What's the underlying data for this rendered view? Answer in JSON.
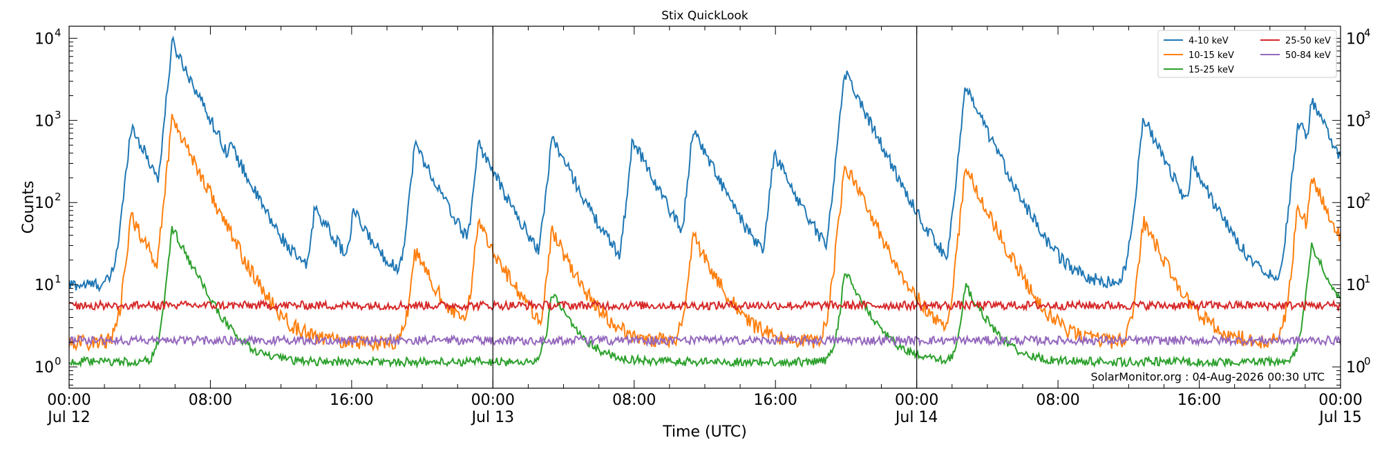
{
  "chart_data": {
    "type": "line",
    "title": "Stix QuickLook",
    "xlabel": "Time (UTC)",
    "ylabel": "Counts",
    "y_scale": "log",
    "ylim": [
      0.55,
      14000
    ],
    "xlim": [
      "2026-07-12 00:00",
      "2026-07-15 00:00"
    ],
    "grid": false,
    "legend_placement": "top-right",
    "x_ticks": [
      {
        "value": "2026-07-12 00:00",
        "label": "00:00",
        "sublabel": "Jul 12"
      },
      {
        "value": "2026-07-12 08:00",
        "label": "08:00",
        "sublabel": ""
      },
      {
        "value": "2026-07-12 16:00",
        "label": "16:00",
        "sublabel": ""
      },
      {
        "value": "2026-07-13 00:00",
        "label": "00:00",
        "sublabel": "Jul 13"
      },
      {
        "value": "2026-07-13 08:00",
        "label": "08:00",
        "sublabel": ""
      },
      {
        "value": "2026-07-13 16:00",
        "label": "16:00",
        "sublabel": ""
      },
      {
        "value": "2026-07-14 00:00",
        "label": "00:00",
        "sublabel": "Jul 14"
      },
      {
        "value": "2026-07-14 08:00",
        "label": "08:00",
        "sublabel": ""
      },
      {
        "value": "2026-07-14 16:00",
        "label": "16:00",
        "sublabel": ""
      },
      {
        "value": "2026-07-15 00:00",
        "label": "00:00",
        "sublabel": "Jul 15"
      }
    ],
    "y_ticks": [
      1,
      10,
      100,
      1000,
      10000
    ],
    "day_dividers": [
      "2026-07-13 00:00",
      "2026-07-14 00:00"
    ],
    "annotation": "SolarMonitor.org : 04-Aug-2026 00:30 UTC",
    "series": [
      {
        "name": "4-10 keV",
        "color": "#1f77b4",
        "baseline": 10,
        "peaks": [
          {
            "time": "2026-07-12 03:30",
            "peak": 880
          },
          {
            "time": "2026-07-12 05:50",
            "peak": 9000
          },
          {
            "time": "2026-07-12 09:05",
            "peak": 540
          },
          {
            "time": "2026-07-12 13:55",
            "peak": 90
          },
          {
            "time": "2026-07-12 16:05",
            "peak": 80
          },
          {
            "time": "2026-07-12 19:35",
            "peak": 530
          },
          {
            "time": "2026-07-12 23:10",
            "peak": 540
          },
          {
            "time": "2026-07-13 03:20",
            "peak": 640
          },
          {
            "time": "2026-07-13 07:55",
            "peak": 600
          },
          {
            "time": "2026-07-13 11:20",
            "peak": 800
          },
          {
            "time": "2026-07-13 15:55",
            "peak": 400
          },
          {
            "time": "2026-07-13 19:55",
            "peak": 4000
          },
          {
            "time": "2026-07-14 02:45",
            "peak": 2500
          },
          {
            "time": "2026-07-14 12:50",
            "peak": 1100
          },
          {
            "time": "2026-07-14 15:35",
            "peak": 320
          },
          {
            "time": "2026-07-14 21:35",
            "peak": 1000
          },
          {
            "time": "2026-07-14 22:20",
            "peak": 1800
          }
        ]
      },
      {
        "name": "10-15 keV",
        "color": "#ff7f0e",
        "baseline": 2,
        "peaks": [
          {
            "time": "2026-07-12 03:30",
            "peak": 70
          },
          {
            "time": "2026-07-12 05:50",
            "peak": 1100
          },
          {
            "time": "2026-07-12 09:05",
            "peak": 35
          },
          {
            "time": "2026-07-12 19:35",
            "peak": 25
          },
          {
            "time": "2026-07-12 23:10",
            "peak": 60
          },
          {
            "time": "2026-07-13 03:20",
            "peak": 45
          },
          {
            "time": "2026-07-13 11:20",
            "peak": 40
          },
          {
            "time": "2026-07-13 19:55",
            "peak": 300
          },
          {
            "time": "2026-07-14 02:45",
            "peak": 270
          },
          {
            "time": "2026-07-14 12:50",
            "peak": 60
          },
          {
            "time": "2026-07-14 21:35",
            "peak": 90
          },
          {
            "time": "2026-07-14 22:20",
            "peak": 200
          }
        ]
      },
      {
        "name": "15-25 keV",
        "color": "#2ca02c",
        "baseline": 1.15,
        "peaks": [
          {
            "time": "2026-07-12 05:50",
            "peak": 50
          },
          {
            "time": "2026-07-13 03:20",
            "peak": 8
          },
          {
            "time": "2026-07-13 19:55",
            "peak": 15
          },
          {
            "time": "2026-07-14 02:45",
            "peak": 10
          },
          {
            "time": "2026-07-14 22:20",
            "peak": 30
          }
        ]
      },
      {
        "name": "25-50 keV",
        "color": "#d62728",
        "baseline": 5.6,
        "peaks": []
      },
      {
        "name": "50-84 keV",
        "color": "#9467bd",
        "baseline": 2.1,
        "peaks": []
      }
    ]
  }
}
